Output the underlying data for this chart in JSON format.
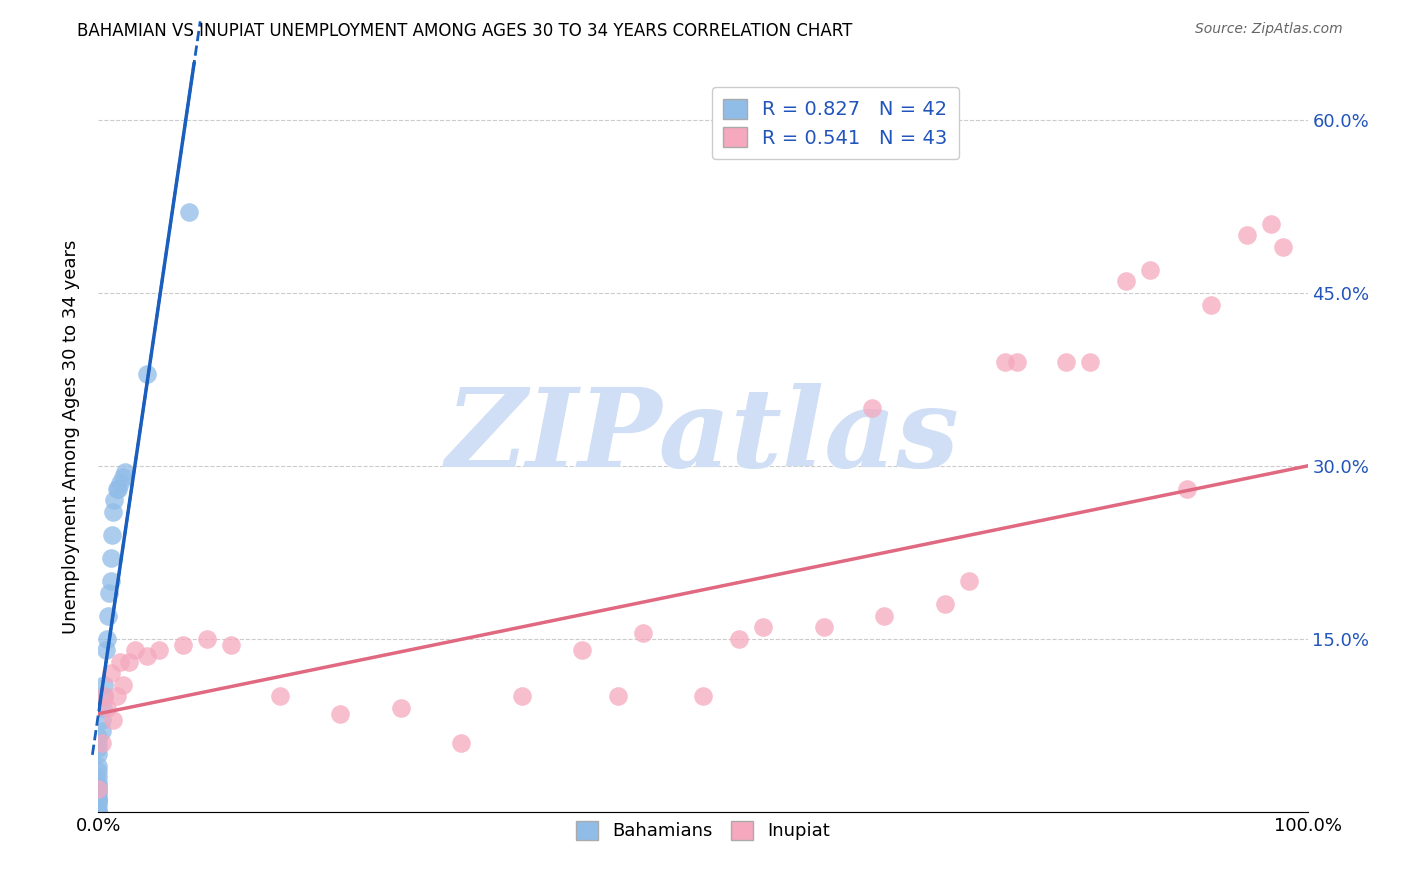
{
  "title": "BAHAMIAN VS INUPIAT UNEMPLOYMENT AMONG AGES 30 TO 34 YEARS CORRELATION CHART",
  "source": "Source: ZipAtlas.com",
  "ylabel": "Unemployment Among Ages 30 to 34 years",
  "xlim": [
    0,
    1.0
  ],
  "ylim": [
    0,
    0.65
  ],
  "x_tick_positions": [
    0.0,
    0.1,
    0.2,
    0.3,
    0.4,
    0.5,
    0.6,
    0.7,
    0.8,
    0.9,
    1.0
  ],
  "x_tick_labels": [
    "0.0%",
    "",
    "",
    "",
    "",
    "",
    "",
    "",
    "",
    "",
    "100.0%"
  ],
  "y_tick_positions": [
    0.0,
    0.15,
    0.3,
    0.45,
    0.6
  ],
  "y_tick_labels_right": [
    "",
    "15.0%",
    "30.0%",
    "45.0%",
    "60.0%"
  ],
  "bahamian_color": "#90bce8",
  "inupiat_color": "#f5a8be",
  "trend_bahamian_color": "#1a5fbe",
  "trend_inupiat_color": "#e06880",
  "watermark_text": "ZIPatlas",
  "watermark_color": "#d0dff5",
  "legend_color": "#2255bb",
  "bahamian_x": [
    0.0,
    0.0,
    0.0,
    0.0,
    0.0,
    0.0,
    0.0,
    0.0,
    0.0,
    0.0,
    0.0,
    0.0,
    0.0,
    0.0,
    0.0,
    0.0,
    0.0,
    0.0,
    0.0,
    0.0,
    0.0,
    0.003,
    0.003,
    0.004,
    0.005,
    0.005,
    0.006,
    0.007,
    0.008,
    0.009,
    0.01,
    0.01,
    0.011,
    0.012,
    0.013,
    0.015,
    0.016,
    0.018,
    0.02,
    0.022,
    0.04,
    0.075
  ],
  "bahamian_y": [
    0.0,
    0.0,
    0.0,
    0.0,
    0.005,
    0.008,
    0.01,
    0.01,
    0.012,
    0.015,
    0.018,
    0.02,
    0.022,
    0.025,
    0.03,
    0.035,
    0.04,
    0.05,
    0.055,
    0.06,
    0.065,
    0.07,
    0.08,
    0.09,
    0.1,
    0.11,
    0.14,
    0.15,
    0.17,
    0.19,
    0.2,
    0.22,
    0.24,
    0.26,
    0.27,
    0.28,
    0.28,
    0.285,
    0.29,
    0.295,
    0.38,
    0.52
  ],
  "inupiat_x": [
    0.0,
    0.003,
    0.005,
    0.007,
    0.01,
    0.012,
    0.015,
    0.018,
    0.02,
    0.025,
    0.03,
    0.04,
    0.05,
    0.07,
    0.09,
    0.11,
    0.15,
    0.2,
    0.25,
    0.3,
    0.35,
    0.4,
    0.43,
    0.45,
    0.5,
    0.53,
    0.55,
    0.6,
    0.64,
    0.65,
    0.7,
    0.72,
    0.75,
    0.76,
    0.8,
    0.82,
    0.85,
    0.87,
    0.9,
    0.92,
    0.95,
    0.97,
    0.98
  ],
  "inupiat_y": [
    0.02,
    0.06,
    0.1,
    0.09,
    0.12,
    0.08,
    0.1,
    0.13,
    0.11,
    0.13,
    0.14,
    0.135,
    0.14,
    0.145,
    0.15,
    0.145,
    0.1,
    0.085,
    0.09,
    0.06,
    0.1,
    0.14,
    0.1,
    0.155,
    0.1,
    0.15,
    0.16,
    0.16,
    0.35,
    0.17,
    0.18,
    0.2,
    0.39,
    0.39,
    0.39,
    0.39,
    0.46,
    0.47,
    0.28,
    0.44,
    0.5,
    0.51,
    0.49
  ],
  "trend_blue_x0": 0.0,
  "trend_blue_y0": 0.085,
  "trend_blue_x1": 0.075,
  "trend_blue_y1": 0.62,
  "trend_pink_x0": 0.0,
  "trend_pink_y0": 0.085,
  "trend_pink_x1": 1.0,
  "trend_pink_y1": 0.3
}
